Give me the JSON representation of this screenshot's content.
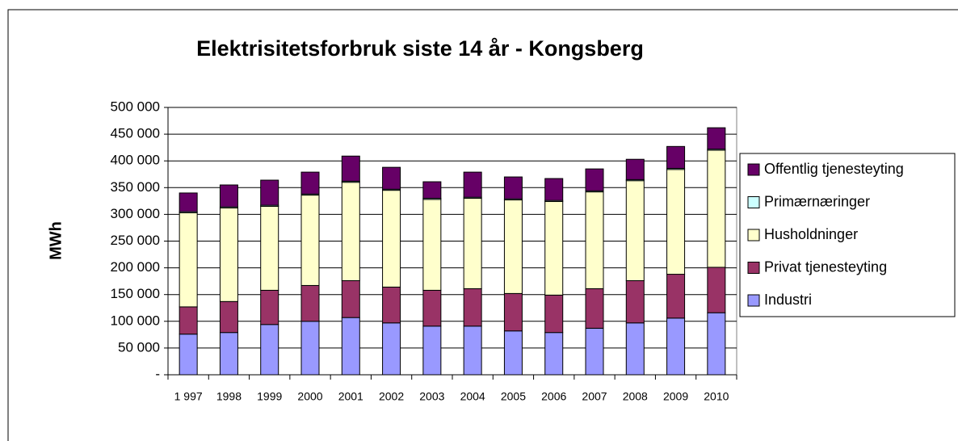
{
  "chart_data": {
    "type": "stacked_bar",
    "title": "Elektrisitetsforbruk siste 14 år - Kongsberg",
    "y_label": "MWh",
    "categories": [
      "1 997",
      "1998",
      "1999",
      "2000",
      "2001",
      "2002",
      "2003",
      "2004",
      "2005",
      "2006",
      "2007",
      "2008",
      "2009",
      "2010"
    ],
    "series": [
      {
        "name": "Industri",
        "color": "#9999ff",
        "values": [
          76000,
          79000,
          94000,
          100000,
          107000,
          97000,
          91000,
          91000,
          82000,
          79000,
          87000,
          97000,
          106000,
          116000
        ]
      },
      {
        "name": "Privat tjenesteyting",
        "color": "#993366",
        "values": [
          51000,
          58000,
          64000,
          67000,
          69000,
          67000,
          67000,
          70000,
          70000,
          70000,
          74000,
          79000,
          82000,
          85000
        ]
      },
      {
        "name": "Husholdninger",
        "color": "#ffffcc",
        "values": [
          176000,
          175000,
          157000,
          169000,
          184000,
          181000,
          170000,
          169000,
          175000,
          175000,
          181000,
          187000,
          196000,
          219000
        ]
      },
      {
        "name": "Primærnæringer",
        "color": "#ccffff",
        "values": [
          2000,
          2000,
          2000,
          2000,
          2000,
          2000,
          2000,
          2000,
          2000,
          2000,
          2000,
          2000,
          2000,
          2000
        ]
      },
      {
        "name": "Offentlig tjenesteyting",
        "color": "#660066",
        "values": [
          35000,
          41000,
          47000,
          41000,
          47000,
          41000,
          31000,
          47000,
          41000,
          41000,
          41000,
          38000,
          41000,
          40000
        ]
      }
    ],
    "ylim": [
      0,
      500000
    ],
    "yticks": [
      {
        "value": 0,
        "label": "-"
      },
      {
        "value": 50000,
        "label": "50 000"
      },
      {
        "value": 100000,
        "label": "100 000"
      },
      {
        "value": 150000,
        "label": "150 000"
      },
      {
        "value": 200000,
        "label": "200 000"
      },
      {
        "value": 250000,
        "label": "250 000"
      },
      {
        "value": 300000,
        "label": "300 000"
      },
      {
        "value": 350000,
        "label": "350 000"
      },
      {
        "value": 400000,
        "label": "400 000"
      },
      {
        "value": 450000,
        "label": "450 000"
      },
      {
        "value": 500000,
        "label": "500 000"
      }
    ],
    "grid": true,
    "legend": "right"
  }
}
